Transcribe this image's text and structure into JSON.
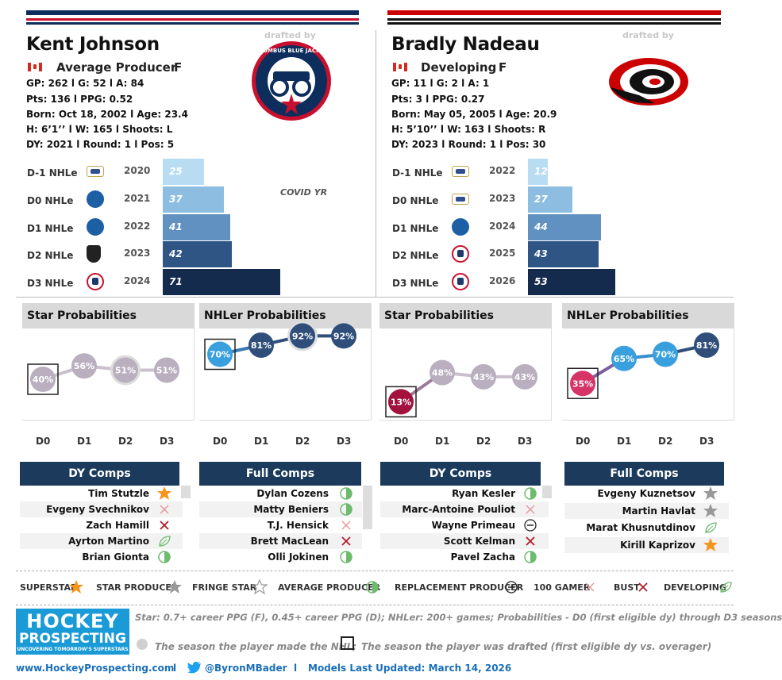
{
  "colors": {
    "cbj_navy": "#0d2d5c",
    "cbj_red": "#c8102e",
    "car_red": "#cc0000",
    "car_black": "#111111",
    "dark_navy": "#1b3a5c",
    "star": "#f7941d",
    "grey_star": "#999999"
  },
  "left": {
    "name": "Kent Johnson",
    "role": "Average Producer",
    "pos": "F",
    "line1": "GP: 262 l G: 52 l A: 84",
    "line2": "Pts: 136 l PPG: 0.52",
    "line3": "Born: Oct 18, 2002 l Age: 23.4",
    "line4": "H: 6’1’’ l W: 165 l Shoots: L",
    "line5": "DY: 2021 l Round: 1 l Pos: 5",
    "drafted_by": "drafted by",
    "team_logo": "columbus-blue-jackets-logo",
    "team_logo_text": "COLUMBUS BLUE JACKETS",
    "covid": "COVID YR",
    "rows": [
      {
        "label": "D-1 NHLe",
        "league": "chl",
        "year": "2020",
        "value": "25"
      },
      {
        "label": "D0 NHLe",
        "league": "ncaa",
        "year": "2021",
        "value": "37"
      },
      {
        "label": "D1 NHLe",
        "league": "ncaa",
        "year": "2022",
        "value": "41"
      },
      {
        "label": "D2 NHLe",
        "league": "nhl",
        "year": "2023",
        "value": "42"
      },
      {
        "label": "D3 NHLe",
        "league": "ahl",
        "year": "2024",
        "value": "71"
      }
    ],
    "star_title": "Star Probabilities",
    "nhler_title": "NHLer Probabilities",
    "star_probs": [
      "40%",
      "56%",
      "51%",
      "51%"
    ],
    "nhler_probs": [
      "70%",
      "81%",
      "92%",
      "92%"
    ],
    "comps1_title": "DY Comps",
    "comps1": [
      {
        "name": "Tim Stutzle",
        "icon": "superstar"
      },
      {
        "name": "Evgeny Svechnikov",
        "icon": "100-gamer"
      },
      {
        "name": "Zach Hamill",
        "icon": "bust"
      },
      {
        "name": "Ayrton Martino",
        "icon": "developing"
      },
      {
        "name": "Brian Gionta",
        "icon": "average-producer"
      }
    ],
    "comps2_title": "Full Comps",
    "comps2": [
      {
        "name": "Dylan Cozens",
        "icon": "average-producer"
      },
      {
        "name": "Matty Beniers",
        "icon": "average-producer"
      },
      {
        "name": "T.J. Hensick",
        "icon": "100-gamer"
      },
      {
        "name": "Brett MacLean",
        "icon": "bust"
      },
      {
        "name": "Olli Jokinen",
        "icon": "average-producer"
      }
    ]
  },
  "right": {
    "name": "Bradly Nadeau",
    "role": "Developing",
    "pos": "F",
    "line1": "GP: 11 l G: 2 l A: 1",
    "line2": "Pts: 3 l PPG: 0.27",
    "line3": "Born: May 05, 2005 l Age: 20.9",
    "line4": "H: 5’10’’ l W: 163 l Shoots: R",
    "line5": "DY: 2023 l Round: 1 l Pos: 30",
    "drafted_by": "drafted by",
    "team_logo": "carolina-hurricanes-logo",
    "rows": [
      {
        "label": "D-1 NHLe",
        "league": "chl",
        "year": "2022",
        "value": "12"
      },
      {
        "label": "D0 NHLe",
        "league": "chl",
        "year": "2023",
        "value": "27"
      },
      {
        "label": "D1 NHLe",
        "league": "ncaa",
        "year": "2024",
        "value": "44"
      },
      {
        "label": "D2 NHLe",
        "league": "ahl",
        "year": "2025",
        "value": "43"
      },
      {
        "label": "D3 NHLe",
        "league": "ahl",
        "year": "2026",
        "value": "53"
      }
    ],
    "star_title": "Star Probabilities",
    "nhler_title": "NHLer Probabilities",
    "star_probs": [
      "13%",
      "48%",
      "43%",
      "43%"
    ],
    "nhler_probs": [
      "35%",
      "65%",
      "70%",
      "81%"
    ],
    "comps1_title": "DY Comps",
    "comps1": [
      {
        "name": "Ryan Kesler",
        "icon": "average-producer"
      },
      {
        "name": "Marc-Antoine Pouliot",
        "icon": "100-gamer"
      },
      {
        "name": "Wayne Primeau",
        "icon": "replacement-producer"
      },
      {
        "name": "Scott Kelman",
        "icon": "bust"
      },
      {
        "name": "Pavel Zacha",
        "icon": "average-producer"
      }
    ],
    "comps2_title": "Full Comps",
    "comps2": [
      {
        "name": "Evgeny Kuznetsov",
        "icon": "star-producer"
      },
      {
        "name": "Martin Havlat",
        "icon": "star-producer"
      },
      {
        "name": "Marat Khusnutdinov",
        "icon": "developing"
      },
      {
        "name": "Kirill Kaprizov",
        "icon": "superstar"
      }
    ]
  },
  "dlabels": [
    "D0",
    "D1",
    "D2",
    "D3"
  ],
  "legend": [
    {
      "label": "SUPERSTAR",
      "icon": "superstar"
    },
    {
      "label": "STAR PRODUCER",
      "icon": "star-producer"
    },
    {
      "label": "FRINGE STAR",
      "icon": "fringe-star"
    },
    {
      "label": "AVERAGE PRODUCER",
      "icon": "average-producer"
    },
    {
      "label": "REPLACEMENT PRODUCER",
      "icon": "replacement-producer"
    },
    {
      "label": "100 GAMER",
      "icon": "100-gamer"
    },
    {
      "label": "BUST",
      "icon": "bust"
    },
    {
      "label": "DEVELOPING",
      "icon": "developing"
    }
  ],
  "brand": {
    "line1": "HOCKEY",
    "line2": "PROSPECTING",
    "line3": "UNCOVERING TOMORROW'S SUPERSTARS"
  },
  "notes": {
    "n1": "Star: 0.7+ career PPG (F), 0.45+ career PPG (D); NHLer: 200+ games; Probabilities - D0 (first eligible dy) through D3 seasons",
    "n2": "The season the player made the NHL;",
    "n3": "The season the player was drafted (first eligible dy vs. overager)"
  },
  "footer": {
    "site": "www.HockeyProspecting.com",
    "sep1": "l",
    "twitter": "@ByronMBader",
    "sep2": "l",
    "updated": "Models Last Updated: March 14, 2026"
  }
}
